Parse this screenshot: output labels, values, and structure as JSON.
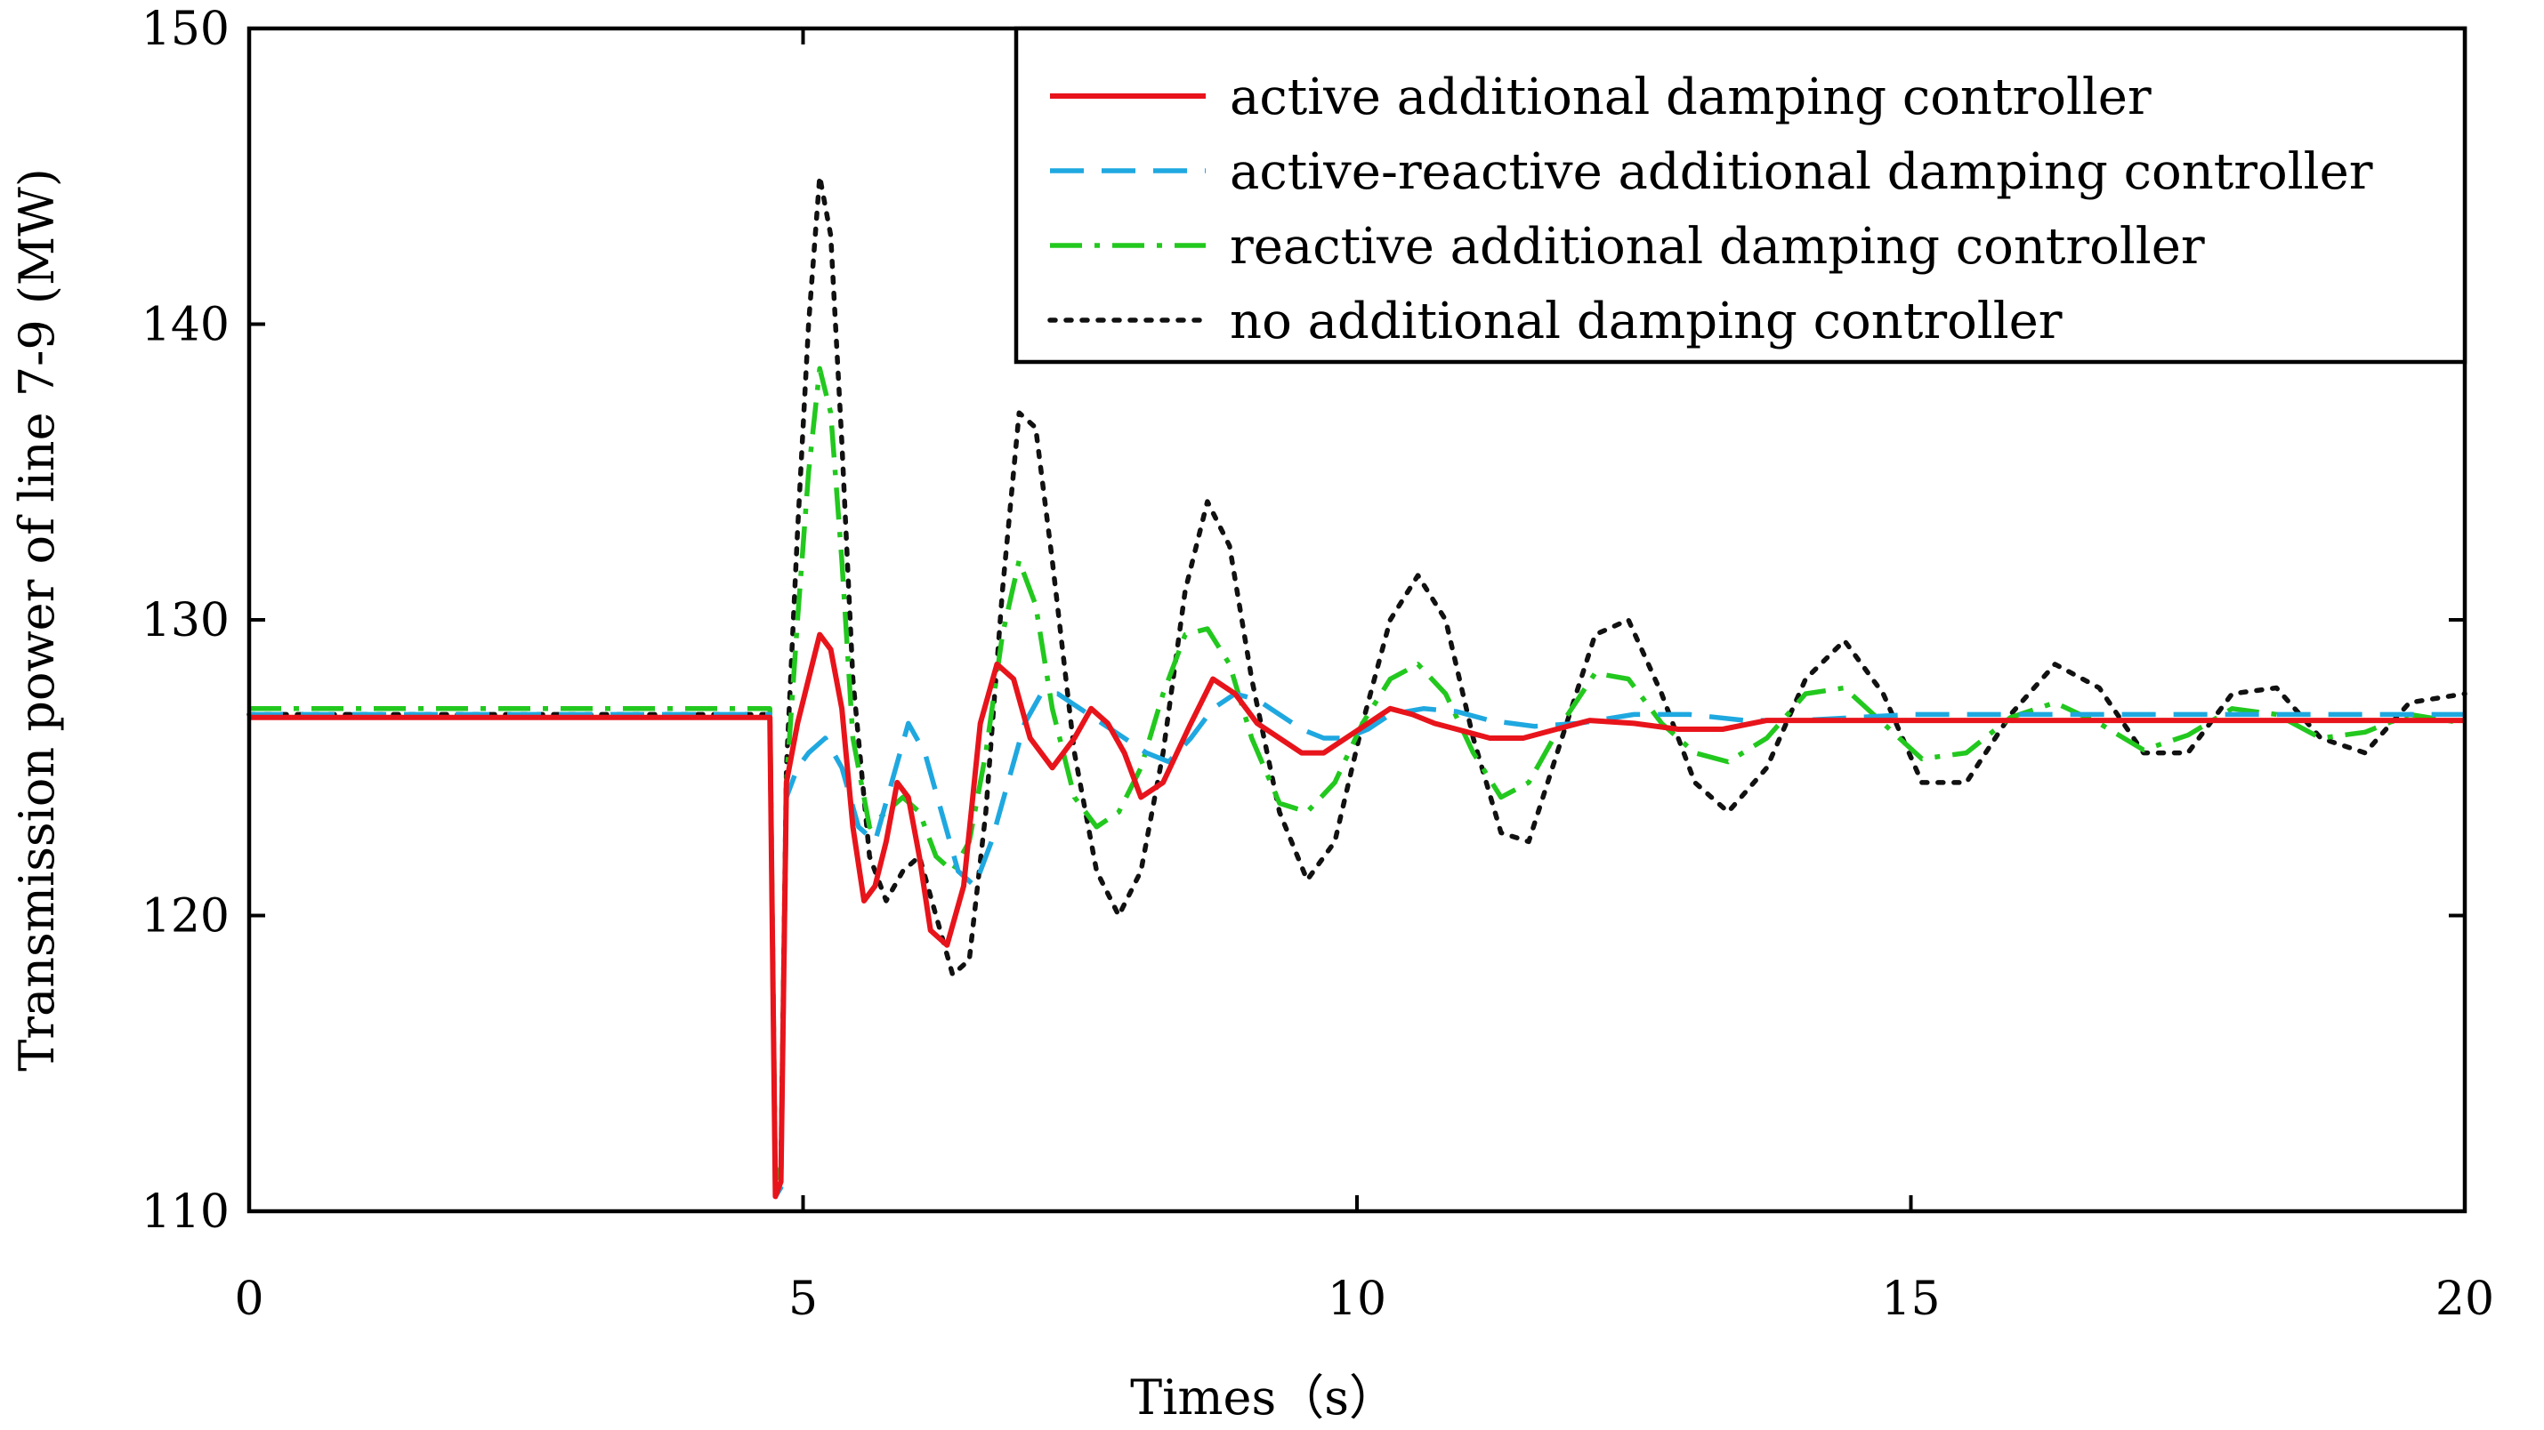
{
  "chart_data": {
    "type": "line",
    "title": "",
    "xlabel": "Times（s）",
    "ylabel": "Transmission power of line 7-9 (MW)",
    "xlim": [
      0,
      20
    ],
    "ylim": [
      110,
      150
    ],
    "xticks": [
      0,
      5,
      10,
      15,
      20
    ],
    "yticks": [
      110,
      120,
      130,
      140,
      150
    ],
    "xtick_labels": [
      "0",
      "5",
      "10",
      "15",
      "20"
    ],
    "ytick_labels": [
      "110",
      "120",
      "130",
      "140",
      "150"
    ],
    "grid": false,
    "legend_position": "top-right",
    "series": [
      {
        "name": "active additional damping controller",
        "color": "#e8141b",
        "style": "solid",
        "x": [
          0,
          4.7,
          4.75,
          4.8,
          4.85,
          4.95,
          5.05,
          5.15,
          5.25,
          5.35,
          5.45,
          5.55,
          5.65,
          5.75,
          5.85,
          5.95,
          6.05,
          6.15,
          6.3,
          6.45,
          6.6,
          6.75,
          6.9,
          7.05,
          7.25,
          7.45,
          7.6,
          7.75,
          7.9,
          8.05,
          8.25,
          8.5,
          8.7,
          8.9,
          9.1,
          9.3,
          9.5,
          9.7,
          9.9,
          10.1,
          10.3,
          10.5,
          10.7,
          10.9,
          11.2,
          11.5,
          11.8,
          12.1,
          12.5,
          12.9,
          13.3,
          13.7,
          14.2,
          15,
          16,
          17,
          18,
          19,
          20
        ],
        "y": [
          126.7,
          126.7,
          110.5,
          111,
          124.5,
          126.5,
          128,
          129.5,
          129,
          127,
          123,
          120.5,
          121,
          122.5,
          124.5,
          124,
          122,
          119.5,
          119,
          121,
          126.5,
          128.5,
          128,
          126,
          125,
          126,
          127,
          126.5,
          125.5,
          124,
          124.5,
          126.5,
          128,
          127.5,
          126.5,
          126,
          125.5,
          125.5,
          126,
          126.5,
          127,
          126.8,
          126.5,
          126.3,
          126,
          126,
          126.3,
          126.6,
          126.5,
          126.3,
          126.3,
          126.6,
          126.6,
          126.6,
          126.6,
          126.6,
          126.6,
          126.6,
          126.6
        ]
      },
      {
        "name": "active-reactive additional damping controller",
        "color": "#1fa8e0",
        "style": "dashed",
        "x": [
          0,
          4.7,
          4.75,
          4.8,
          4.85,
          4.95,
          5.05,
          5.2,
          5.35,
          5.5,
          5.65,
          5.8,
          5.95,
          6.1,
          6.25,
          6.4,
          6.55,
          6.7,
          6.85,
          7.0,
          7.15,
          7.3,
          7.5,
          7.7,
          7.9,
          8.1,
          8.3,
          8.5,
          8.7,
          8.9,
          9.1,
          9.3,
          9.5,
          9.7,
          9.9,
          10.1,
          10.3,
          10.6,
          10.9,
          11.2,
          11.6,
          12.0,
          12.5,
          13,
          13.5,
          14,
          15,
          16,
          17,
          18,
          19,
          20
        ],
        "y": [
          126.8,
          126.8,
          110.5,
          110.8,
          124,
          125,
          125.5,
          126,
          125,
          123,
          122.5,
          124.5,
          126.5,
          125.5,
          123.5,
          121.5,
          121,
          122.5,
          124.5,
          126.5,
          127.5,
          127.5,
          127,
          126.5,
          126,
          125.5,
          125.2,
          126,
          127,
          127.5,
          127.3,
          126.8,
          126.3,
          126,
          126,
          126.3,
          126.8,
          127,
          126.9,
          126.6,
          126.4,
          126.5,
          126.8,
          126.8,
          126.6,
          126.6,
          126.8,
          126.8,
          126.8,
          126.8,
          126.8,
          126.8
        ]
      },
      {
        "name": "reactive additional damping controller",
        "color": "#22c81e",
        "style": "dashdot",
        "x": [
          0,
          4.7,
          4.75,
          4.8,
          4.85,
          4.95,
          5.05,
          5.15,
          5.25,
          5.35,
          5.45,
          5.6,
          5.75,
          5.9,
          6.05,
          6.2,
          6.35,
          6.5,
          6.65,
          6.8,
          6.95,
          7.1,
          7.25,
          7.45,
          7.65,
          7.85,
          8.05,
          8.25,
          8.45,
          8.65,
          8.85,
          9.05,
          9.3,
          9.55,
          9.8,
          10.05,
          10.3,
          10.55,
          10.8,
          11.05,
          11.3,
          11.55,
          11.85,
          12.15,
          12.45,
          12.75,
          13.05,
          13.35,
          13.7,
          14.05,
          14.4,
          14.75,
          15.1,
          15.5,
          15.9,
          16.3,
          16.7,
          17.1,
          17.5,
          17.9,
          18.3,
          18.7,
          19.1,
          19.5,
          20
        ],
        "y": [
          127,
          127,
          111,
          111.5,
          124.5,
          130,
          135,
          138.5,
          137,
          132,
          126,
          123,
          123.5,
          124,
          123.5,
          122,
          121.5,
          122.5,
          125.5,
          129.5,
          132,
          130.5,
          127,
          124,
          123,
          123.5,
          125,
          127.5,
          129.5,
          129.7,
          128.5,
          126,
          123.8,
          123.5,
          124.5,
          126.5,
          128,
          128.5,
          127.5,
          125.5,
          124,
          124.5,
          126.5,
          128.2,
          128,
          126.5,
          125.5,
          125.2,
          126,
          127.5,
          127.7,
          126.5,
          125.3,
          125.5,
          126.7,
          127.2,
          126.5,
          125.6,
          126.1,
          127,
          126.8,
          126,
          126.2,
          126.8,
          126.5
        ]
      },
      {
        "name": "no additional damping controller",
        "color": "#111111",
        "style": "dotted",
        "x": [
          0,
          4.7,
          4.75,
          4.8,
          4.85,
          4.95,
          5.05,
          5.15,
          5.25,
          5.35,
          5.45,
          5.6,
          5.75,
          5.9,
          6.05,
          6.2,
          6.35,
          6.5,
          6.65,
          6.8,
          6.95,
          7.1,
          7.25,
          7.45,
          7.65,
          7.85,
          8.05,
          8.25,
          8.45,
          8.65,
          8.85,
          9.05,
          9.3,
          9.55,
          9.8,
          10.05,
          10.3,
          10.55,
          10.8,
          11.05,
          11.3,
          11.55,
          11.85,
          12.15,
          12.45,
          12.75,
          13.05,
          13.35,
          13.7,
          14.05,
          14.4,
          14.75,
          15.1,
          15.5,
          15.9,
          16.3,
          16.7,
          17.1,
          17.5,
          17.9,
          18.3,
          18.7,
          19.1,
          19.5,
          20
        ],
        "y": [
          126.8,
          126.8,
          111,
          111.5,
          125,
          133,
          140,
          145,
          143,
          136,
          128,
          122,
          120.5,
          121.5,
          122,
          120,
          118,
          118.5,
          123.5,
          131,
          137,
          136.5,
          132,
          125.5,
          121.5,
          120,
          121.5,
          125.5,
          131,
          134,
          132.5,
          128,
          123.5,
          121.2,
          122.5,
          126.5,
          130,
          131.5,
          130,
          126,
          122.8,
          122.5,
          126,
          129.5,
          130,
          127.5,
          124.5,
          123.5,
          125,
          128,
          129.3,
          127.5,
          124.5,
          124.5,
          126.8,
          128.5,
          127.7,
          125.5,
          125.5,
          127.5,
          127.7,
          126,
          125.5,
          127.2,
          127.5
        ]
      }
    ]
  }
}
